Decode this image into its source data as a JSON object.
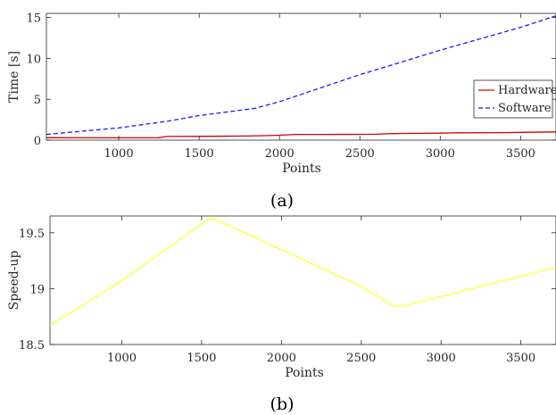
{
  "chart_data": [
    {
      "type": "line",
      "caption": "(a)",
      "xlabel": "Points",
      "ylabel": "Time [s]",
      "xlim": [
        550,
        3720
      ],
      "ylim": [
        0,
        15.5
      ],
      "xticks": [
        1000,
        1500,
        2000,
        2500,
        3000,
        3500
      ],
      "yticks": [
        0,
        5,
        10,
        15
      ],
      "grid": false,
      "legend_position": "center-right",
      "series": [
        {
          "name": "Hardware",
          "color": "#d40000",
          "style": "solid",
          "x": [
            550,
            800,
            1000,
            1250,
            1300,
            1500,
            1800,
            1900,
            2000,
            2100,
            2300,
            2600,
            2700,
            2800,
            3000,
            3100,
            3400,
            3500,
            3720
          ],
          "y": [
            0.3,
            0.28,
            0.28,
            0.3,
            0.45,
            0.46,
            0.5,
            0.55,
            0.6,
            0.7,
            0.7,
            0.72,
            0.8,
            0.82,
            0.85,
            0.9,
            0.92,
            0.95,
            1.0
          ]
        },
        {
          "name": "Software",
          "color": "#1a1aff",
          "style": "dashed",
          "x": [
            550,
            1000,
            1300,
            1500,
            1850,
            2000,
            2500,
            2750,
            3000,
            3500,
            3720
          ],
          "y": [
            0.7,
            1.5,
            2.3,
            3.0,
            3.9,
            4.7,
            8.0,
            9.5,
            11.0,
            13.8,
            15.2
          ]
        }
      ]
    },
    {
      "type": "line",
      "caption": "(b)",
      "xlabel": "Points",
      "ylabel": "Speed-up",
      "xlim": [
        550,
        3720
      ],
      "ylim": [
        18.5,
        19.65
      ],
      "xticks": [
        1000,
        1500,
        2000,
        2500,
        3000,
        3500
      ],
      "yticks": [
        18.5,
        19,
        19.5
      ],
      "yticklabels": [
        "18.5",
        "19",
        "19.5"
      ],
      "grid": false,
      "series": [
        {
          "color": "#ffff33",
          "style": "solid",
          "x": [
            550,
            1000,
            1500,
            1550,
            1600,
            2000,
            2500,
            2700,
            2750,
            3000,
            3500,
            3720
          ],
          "y": [
            18.67,
            19.07,
            19.58,
            19.63,
            19.61,
            19.35,
            19.02,
            18.85,
            18.84,
            18.93,
            19.11,
            19.19
          ]
        }
      ]
    }
  ]
}
